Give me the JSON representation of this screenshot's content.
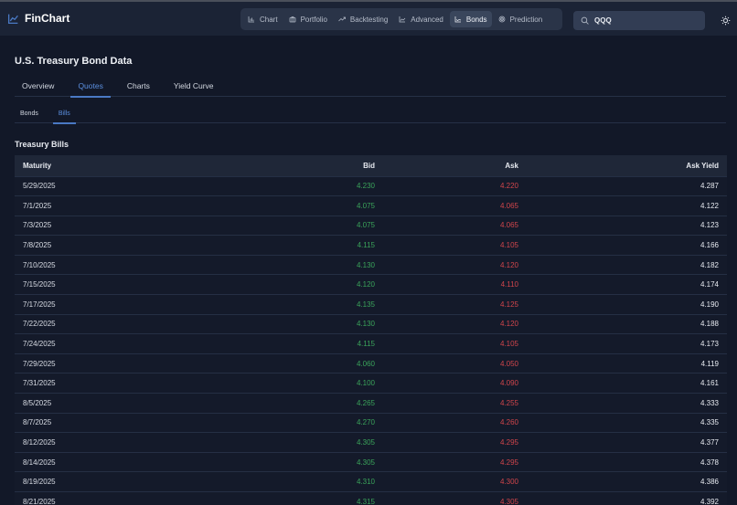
{
  "app": {
    "name": "FinChart"
  },
  "nav": {
    "items": [
      {
        "label": "Chart",
        "icon": "bar-chart-icon",
        "active": false
      },
      {
        "label": "Portfolio",
        "icon": "briefcase-icon",
        "active": false
      },
      {
        "label": "Backtesting",
        "icon": "trending-up-icon",
        "active": false
      },
      {
        "label": "Advanced",
        "icon": "line-chart-icon",
        "active": false
      },
      {
        "label": "Bonds",
        "icon": "line-chart-icon",
        "active": true
      },
      {
        "label": "Prediction",
        "icon": "target-icon",
        "active": false
      }
    ]
  },
  "search": {
    "value": "QQQ",
    "icon": "search-icon"
  },
  "theme_toggle": {
    "icon": "sun-icon"
  },
  "page": {
    "title": "U.S. Treasury Bond Data"
  },
  "tabs": [
    {
      "label": "Overview",
      "active": false
    },
    {
      "label": "Quotes",
      "active": true
    },
    {
      "label": "Charts",
      "active": false
    },
    {
      "label": "Yield Curve",
      "active": false
    }
  ],
  "subtabs": [
    {
      "label": "Bonds",
      "active": false
    },
    {
      "label": "Bills",
      "active": true
    }
  ],
  "section": {
    "title": "Treasury Bills"
  },
  "table": {
    "columns": [
      "Maturity",
      "Bid",
      "Ask",
      "Ask Yield"
    ],
    "rows": [
      [
        "5/29/2025",
        "4.230",
        "4.220",
        "4.287"
      ],
      [
        "7/1/2025",
        "4.075",
        "4.065",
        "4.122"
      ],
      [
        "7/3/2025",
        "4.075",
        "4.065",
        "4.123"
      ],
      [
        "7/8/2025",
        "4.115",
        "4.105",
        "4.166"
      ],
      [
        "7/10/2025",
        "4.130",
        "4.120",
        "4.182"
      ],
      [
        "7/15/2025",
        "4.120",
        "4.110",
        "4.174"
      ],
      [
        "7/17/2025",
        "4.135",
        "4.125",
        "4.190"
      ],
      [
        "7/22/2025",
        "4.130",
        "4.120",
        "4.188"
      ],
      [
        "7/24/2025",
        "4.115",
        "4.105",
        "4.173"
      ],
      [
        "7/29/2025",
        "4.060",
        "4.050",
        "4.119"
      ],
      [
        "7/31/2025",
        "4.100",
        "4.090",
        "4.161"
      ],
      [
        "8/5/2025",
        "4.265",
        "4.255",
        "4.333"
      ],
      [
        "8/7/2025",
        "4.270",
        "4.260",
        "4.335"
      ],
      [
        "8/12/2025",
        "4.305",
        "4.295",
        "4.377"
      ],
      [
        "8/14/2025",
        "4.305",
        "4.295",
        "4.378"
      ],
      [
        "8/19/2025",
        "4.310",
        "4.300",
        "4.386"
      ],
      [
        "8/21/2025",
        "4.315",
        "4.305",
        "4.392"
      ]
    ]
  },
  "colors": {
    "accent": "#4a79c4",
    "bid": "#3aa35a",
    "ask": "#d0454b",
    "background": "#121828",
    "header": "#1b2335"
  }
}
